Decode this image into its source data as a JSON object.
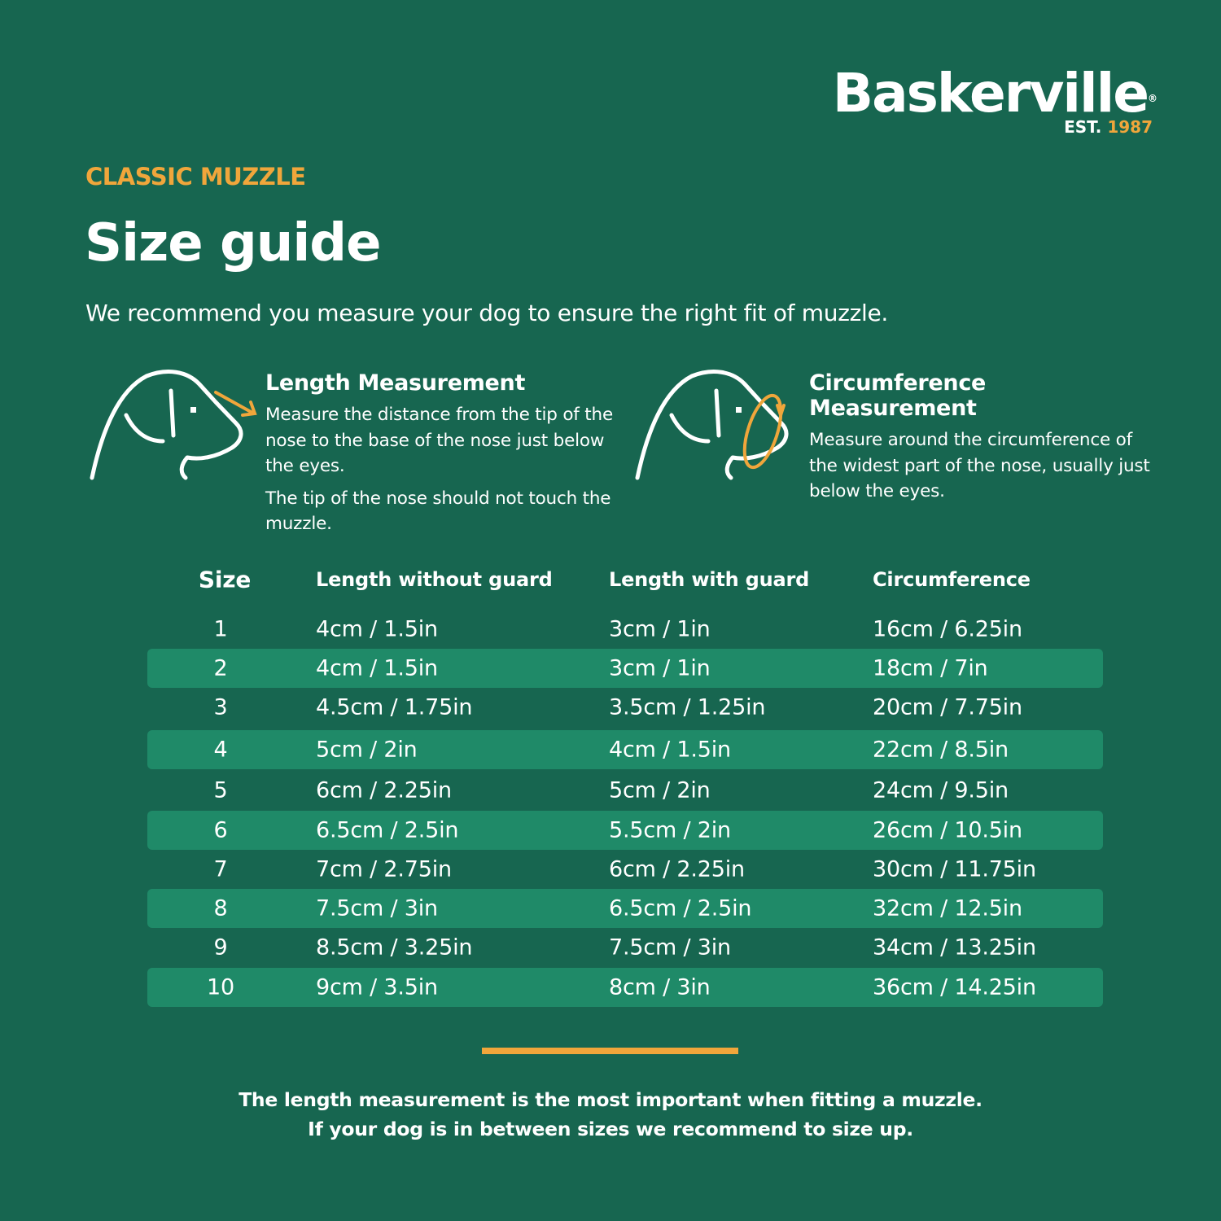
{
  "brand": {
    "name": "Baskerville",
    "registered": "®",
    "est_label": "EST.",
    "est_year": "1987"
  },
  "header": {
    "eyebrow": "CLASSIC MUZZLE",
    "title": "Size guide",
    "intro": "We recommend you measure your dog to ensure the right fit of muzzle."
  },
  "measurements": [
    {
      "icon": "dog-length-icon",
      "title": "Length Measurement",
      "paragraphs": [
        "Measure the distance from the tip of the nose to the base of the nose just below the eyes.",
        "The tip of the nose should not touch the muzzle."
      ]
    },
    {
      "icon": "dog-circumference-icon",
      "title": "Circumference Measurement",
      "paragraphs": [
        "Measure around the circumference of the widest part of the nose, usually just below the eyes."
      ]
    }
  ],
  "table": {
    "headers": [
      "Size",
      "Length without guard",
      "Length with guard",
      "Circumference"
    ],
    "rows": [
      [
        "1",
        "4cm / 1.5in",
        "3cm / 1in",
        "16cm / 6.25in"
      ],
      [
        "2",
        "4cm / 1.5in",
        "3cm / 1in",
        "18cm / 7in"
      ],
      [
        "3",
        "4.5cm / 1.75in",
        "3.5cm / 1.25in",
        "20cm / 7.75in"
      ],
      [
        "4",
        "5cm / 2in",
        "4cm / 1.5in",
        "22cm / 8.5in"
      ],
      [
        "5",
        "6cm / 2.25in",
        "5cm / 2in",
        "24cm / 9.5in"
      ],
      [
        "6",
        "6.5cm / 2.5in",
        "5.5cm / 2in",
        "26cm / 10.5in"
      ],
      [
        "7",
        "7cm / 2.75in",
        "6cm / 2.25in",
        "30cm / 11.75in"
      ],
      [
        "8",
        "7.5cm / 3in",
        "6.5cm / 2.5in",
        "32cm / 12.5in"
      ],
      [
        "9",
        "8.5cm / 3.25in",
        "7.5cm / 3in",
        "34cm / 13.25in"
      ],
      [
        "10",
        "9cm / 3.5in",
        "8cm / 3in",
        "36cm / 14.25in"
      ]
    ]
  },
  "footer": {
    "line1": "The length measurement is the most important when fitting a muzzle.",
    "line2": "If your dog is in between sizes we recommend to size up."
  },
  "colors": {
    "background": "#176650",
    "row_highlight": "#1f8a68",
    "accent": "#f0a63b",
    "text": "#ffffff"
  }
}
